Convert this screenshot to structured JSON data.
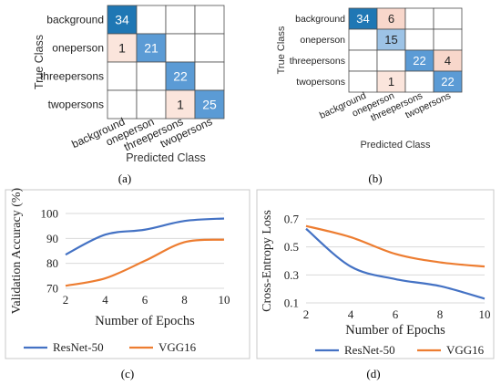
{
  "colors": {
    "resnet": "#4472c4",
    "vgg": "#ed7d31",
    "cm_high": "#1f77b4",
    "cm_mid": "#5b9bd5",
    "cm_low_blue": "#9dc3e6",
    "cm_low_red": "#fbe5dc",
    "cm_mid_red": "#f8d7cb",
    "grid": "#d9d9d9",
    "frame": "#c9c9c9"
  },
  "panels": {
    "a": "(a)",
    "b": "(b)",
    "c": "(c)",
    "d": "(d)"
  },
  "chart_data": [
    {
      "type": "heatmap",
      "panel": "(a)",
      "xlabel": "Predicted Class",
      "ylabel": "True Class",
      "classes": [
        "background",
        "oneperson",
        "threepersons",
        "twopersons"
      ],
      "cells": [
        [
          34,
          null,
          null,
          null
        ],
        [
          1,
          21,
          null,
          null
        ],
        [
          null,
          null,
          22,
          null
        ],
        [
          null,
          null,
          1,
          25
        ]
      ]
    },
    {
      "type": "heatmap",
      "panel": "(b)",
      "xlabel": "Predicted Class",
      "ylabel": "True Class",
      "classes": [
        "background",
        "oneperson",
        "threepersons",
        "twopersons"
      ],
      "cells": [
        [
          34,
          6,
          null,
          null
        ],
        [
          null,
          15,
          null,
          null
        ],
        [
          null,
          null,
          22,
          4
        ],
        [
          null,
          1,
          null,
          22
        ]
      ]
    },
    {
      "type": "line",
      "panel": "(c)",
      "xlabel": "Number of Epochs",
      "ylabel": "Validation Accuracy (%)",
      "x": [
        2,
        4,
        6,
        8,
        10
      ],
      "xlim": [
        2,
        10
      ],
      "ylim": [
        70,
        100
      ],
      "xticks": [
        2,
        4,
        6,
        8,
        10
      ],
      "yticks": [
        70,
        80,
        90,
        100
      ],
      "grid": true,
      "legend": "bottom",
      "series": [
        {
          "name": "ResNet-50",
          "values": [
            83.5,
            91.5,
            93.5,
            97,
            98
          ]
        },
        {
          "name": "VGG16",
          "values": [
            71,
            74,
            81,
            88.5,
            89.5
          ]
        }
      ]
    },
    {
      "type": "line",
      "panel": "(d)",
      "xlabel": "Number of Epochs",
      "ylabel": "Cross-Entropy Loss",
      "x": [
        2,
        4,
        6,
        8,
        10
      ],
      "xlim": [
        2,
        10
      ],
      "ylim": [
        0.1,
        0.7
      ],
      "xticks": [
        2,
        4,
        6,
        8,
        10
      ],
      "yticks": [
        0.1,
        0.3,
        0.5,
        0.7
      ],
      "grid": true,
      "legend": "bottom",
      "series": [
        {
          "name": "ResNet-50",
          "values": [
            0.63,
            0.36,
            0.27,
            0.22,
            0.13
          ]
        },
        {
          "name": "VGG16",
          "values": [
            0.65,
            0.57,
            0.45,
            0.39,
            0.36
          ]
        }
      ]
    }
  ]
}
